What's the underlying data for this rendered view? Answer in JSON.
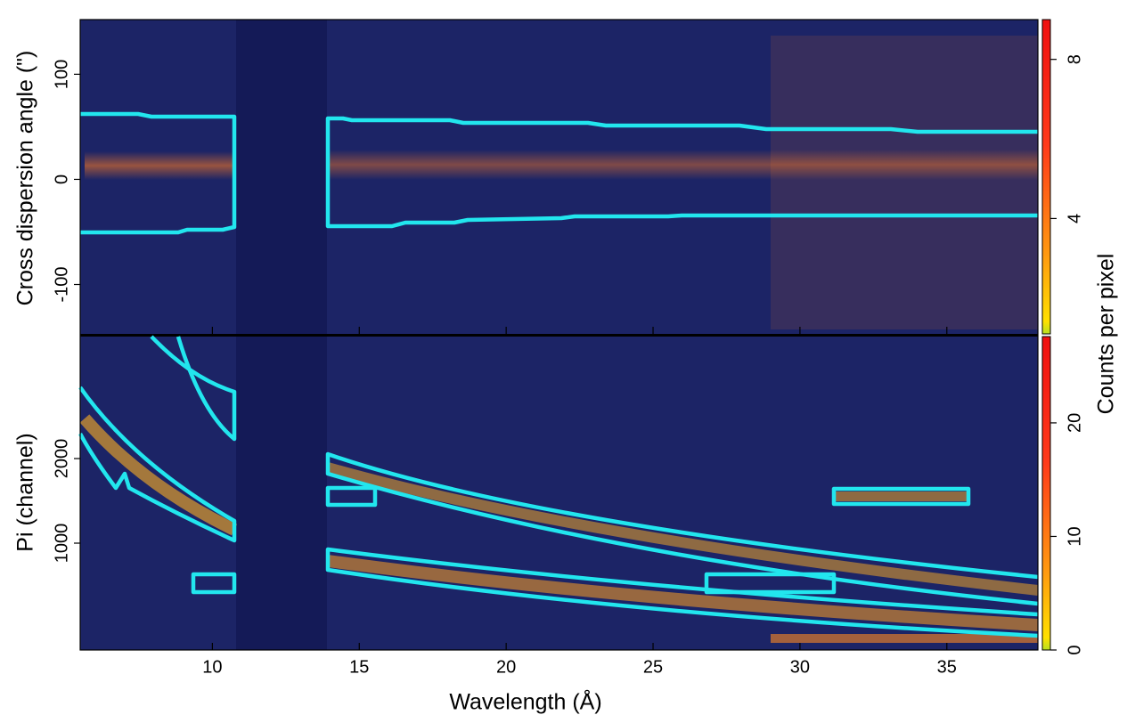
{
  "chart_data": [
    {
      "type": "image",
      "ylabel": "Cross dispersion angle (\")",
      "xlim": [
        5.5,
        38.1
      ],
      "xticks": [
        10,
        15,
        20,
        25,
        30,
        35
      ],
      "ylim": [
        -147,
        152
      ],
      "yticks": [
        -100,
        0,
        100
      ],
      "colorbar": {
        "label": "Counts per pixel",
        "lim": [
          1.1,
          9
        ],
        "ticks": [
          4,
          8
        ]
      }
    },
    {
      "type": "image",
      "xlabel": "Wavelength (Å)",
      "ylabel": "Pi (channel)",
      "xlim": [
        5.5,
        38.1
      ],
      "xticks": [
        10,
        15,
        20,
        25,
        30,
        35
      ],
      "ylim": [
        -263,
        3442
      ],
      "yticks": [
        1000,
        2000
      ],
      "colorbar": {
        "lim": [
          0,
          27.6
        ],
        "ticks": [
          0,
          10,
          20
        ]
      }
    }
  ]
}
